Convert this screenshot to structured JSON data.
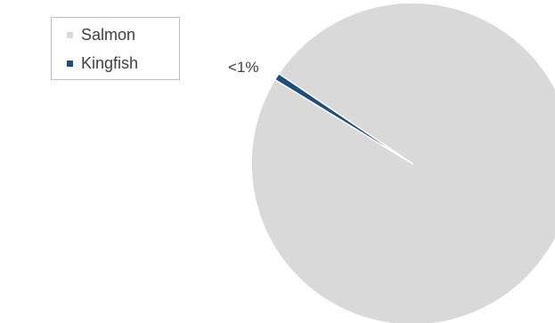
{
  "chart_data": {
    "type": "pie",
    "title": "",
    "categories": [
      "Salmon",
      "Kingfish"
    ],
    "values": [
      99.3,
      0.7
    ],
    "colors": [
      "#d9d9d9",
      "#1f4e79"
    ],
    "data_labels": [
      "",
      "<1%"
    ],
    "legend_position": "top-left",
    "slice_border_color": "#ffffff"
  }
}
